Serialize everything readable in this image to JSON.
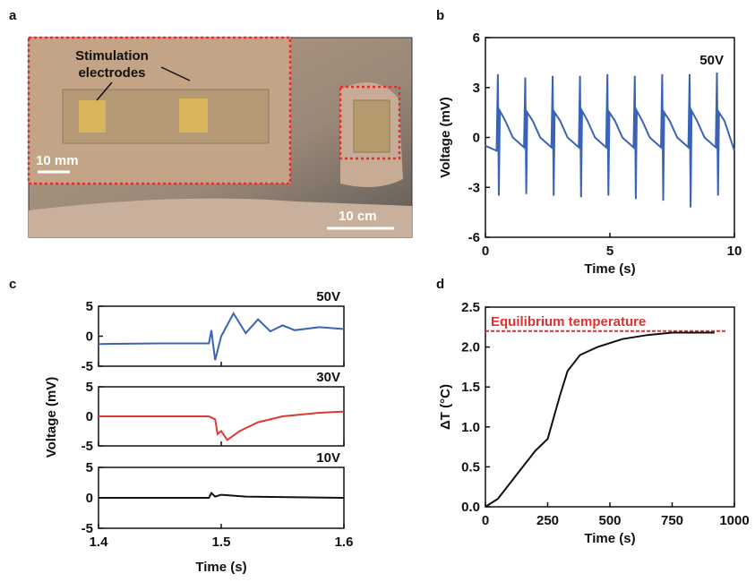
{
  "photo": {
    "panel_label": "a",
    "annotation": [
      "Stimulation",
      "electrodes"
    ],
    "scale_bars": [
      "10 mm",
      "10 cm"
    ]
  },
  "chart_data": [
    {
      "type": "line",
      "panel_label": "b",
      "xlabel": "Time (s)",
      "ylabel": "Voltage (mV)",
      "annotation": "50V",
      "xlim": [
        0,
        10
      ],
      "xticks": [
        0,
        5,
        10
      ],
      "ylim": [
        -6,
        6
      ],
      "yticks": [
        -6,
        -3,
        0,
        3,
        6
      ],
      "series": [
        {
          "color": "#3a63b8",
          "x": [
            0,
            0.45,
            0.5,
            0.54,
            0.58,
            0.8,
            1.1,
            1.55,
            1.6,
            1.64,
            1.68,
            1.9,
            2.2,
            2.65,
            2.7,
            2.74,
            2.78,
            3.0,
            3.3,
            3.75,
            3.8,
            3.84,
            3.88,
            4.1,
            4.4,
            4.85,
            4.9,
            4.94,
            4.98,
            5.2,
            5.5,
            5.95,
            6.0,
            6.04,
            6.08,
            6.3,
            6.6,
            7.05,
            7.1,
            7.14,
            7.18,
            7.4,
            7.7,
            8.15,
            8.2,
            8.24,
            8.28,
            8.5,
            8.8,
            9.25,
            9.3,
            9.34,
            9.38,
            9.6,
            10
          ],
          "values": [
            -0.5,
            -0.8,
            3.8,
            -3.5,
            1.6,
            1.0,
            0.0,
            -0.6,
            3.6,
            -3.4,
            1.5,
            1.0,
            0.0,
            -0.6,
            3.7,
            -3.5,
            1.5,
            1.0,
            0.0,
            -0.6,
            3.7,
            -3.6,
            1.6,
            1.0,
            0.0,
            -0.6,
            3.8,
            -3.5,
            1.5,
            1.0,
            0.0,
            -0.6,
            3.7,
            -3.7,
            1.6,
            1.0,
            0.0,
            -0.6,
            3.8,
            -3.8,
            1.5,
            1.0,
            0.0,
            -0.6,
            3.8,
            -4.2,
            1.6,
            1.0,
            0.0,
            -0.6,
            3.9,
            -3.5,
            1.5,
            1.0,
            -0.8
          ]
        }
      ]
    },
    {
      "type": "stacked-lines",
      "panel_label": "c",
      "xlabel": "Time (s)",
      "ylabel": "Voltage (mV)",
      "xlim": [
        1.4,
        1.6
      ],
      "xticks": [
        1.4,
        1.5,
        1.6
      ],
      "ylim": [
        -5,
        5
      ],
      "yticks": [
        -5,
        0,
        5
      ],
      "subplots": [
        {
          "annotation": "50V",
          "color": "#3a63b8",
          "x": [
            1.4,
            1.45,
            1.49,
            1.492,
            1.495,
            1.5,
            1.51,
            1.52,
            1.53,
            1.54,
            1.55,
            1.56,
            1.58,
            1.6
          ],
          "values": [
            -1.3,
            -1.2,
            -1.2,
            1.0,
            -4.0,
            0.0,
            3.8,
            0.5,
            2.8,
            0.8,
            1.8,
            1.0,
            1.5,
            1.2
          ]
        },
        {
          "annotation": "30V",
          "color": "#d93a32",
          "x": [
            1.4,
            1.45,
            1.49,
            1.495,
            1.497,
            1.5,
            1.505,
            1.515,
            1.53,
            1.55,
            1.58,
            1.6
          ],
          "values": [
            0,
            0,
            0,
            -0.5,
            -3.0,
            -2.5,
            -4.0,
            -2.5,
            -1.0,
            0,
            0.6,
            0.8
          ]
        },
        {
          "annotation": "10V",
          "color": "#111111",
          "x": [
            1.4,
            1.45,
            1.49,
            1.492,
            1.495,
            1.5,
            1.52,
            1.6
          ],
          "values": [
            0,
            0,
            0,
            0.8,
            0.2,
            0.5,
            0.2,
            0
          ]
        }
      ]
    },
    {
      "type": "line",
      "panel_label": "d",
      "xlabel": "Time (s)",
      "ylabel": "ΔT (°C)",
      "xlim": [
        0,
        1000
      ],
      "xticks": [
        0,
        250,
        500,
        750,
        1000
      ],
      "ylim": [
        0,
        2.5
      ],
      "yticks": [
        {
          "value": 0,
          "label": "0.0"
        },
        {
          "value": 0.5,
          "label": "0.5"
        },
        {
          "value": 1,
          "label": "1.0"
        },
        {
          "value": 1.5,
          "label": "1.5"
        },
        {
          "value": 2,
          "label": "2.0"
        },
        {
          "value": 2.5,
          "label": "2.5"
        }
      ],
      "reference_line": {
        "value": 2.2,
        "label": "Equilibrium temperature",
        "color": "#e03030"
      },
      "series": [
        {
          "color": "#111111",
          "x": [
            0,
            50,
            100,
            150,
            200,
            250,
            300,
            330,
            380,
            450,
            550,
            650,
            750,
            920
          ],
          "values": [
            0,
            0.1,
            0.3,
            0.5,
            0.7,
            0.85,
            1.4,
            1.7,
            1.9,
            2.0,
            2.1,
            2.15,
            2.18,
            2.18
          ]
        }
      ]
    }
  ]
}
